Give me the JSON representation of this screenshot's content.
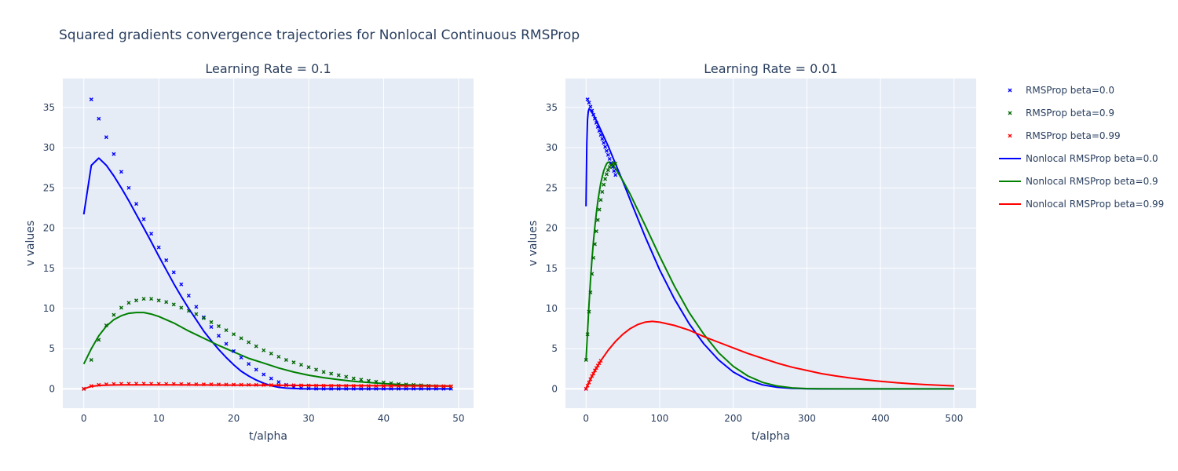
{
  "figure": {
    "title": "Squared gradients convergence trajectories for Nonlocal Continuous RMSProp",
    "plot_bg": "#e5ecf6",
    "grid_color": "#ffffff"
  },
  "legend": {
    "position": "right",
    "items": [
      {
        "label": "RMSProp beta=0.0",
        "type": "marker",
        "color": "#0000ff"
      },
      {
        "label": "RMSProp beta=0.9",
        "type": "marker",
        "color": "#006400"
      },
      {
        "label": "RMSProp beta=0.99",
        "type": "marker",
        "color": "#ff0000"
      },
      {
        "label": "Nonlocal RMSProp beta=0.0",
        "type": "line",
        "color": "#0000ff"
      },
      {
        "label": "Nonlocal RMSProp beta=0.9",
        "type": "line",
        "color": "#008000"
      },
      {
        "label": "Nonlocal RMSProp beta=0.99",
        "type": "line",
        "color": "#ff0000"
      }
    ]
  },
  "chart_data": [
    {
      "type": "line",
      "title": "Learning Rate = 0.1",
      "xlabel": "t/alpha",
      "ylabel": "v values",
      "xlim": [
        -2.8,
        52
      ],
      "ylim": [
        -2.4,
        38.6
      ],
      "xticks": [
        0,
        10,
        20,
        30,
        40,
        50
      ],
      "yticks": [
        0,
        5,
        10,
        15,
        20,
        25,
        30,
        35
      ],
      "grid": true,
      "series": [
        {
          "name": "RMSProp beta=0.0",
          "mode": "markers",
          "color": "#0000ff",
          "x": [
            0,
            1,
            2,
            3,
            4,
            5,
            6,
            7,
            8,
            9,
            10,
            11,
            12,
            13,
            14,
            15,
            16,
            17,
            18,
            19,
            20,
            21,
            22,
            23,
            24,
            25,
            26,
            27,
            28,
            29,
            30,
            31,
            32,
            33,
            34,
            35,
            36,
            37,
            38,
            39,
            40,
            41,
            42,
            43,
            44,
            45,
            46,
            47,
            48,
            49
          ],
          "y": [
            0,
            36.0,
            33.6,
            31.3,
            29.2,
            27.0,
            25.0,
            23.0,
            21.1,
            19.3,
            17.6,
            16.0,
            14.5,
            13.0,
            11.6,
            10.2,
            8.9,
            7.7,
            6.6,
            5.6,
            4.7,
            3.9,
            3.1,
            2.4,
            1.8,
            1.3,
            0.85,
            0.5,
            0.25,
            0.1,
            0.05,
            0.02,
            0.01,
            0.01,
            0.01,
            0.01,
            0.01,
            0.01,
            0.01,
            0.01,
            0.01,
            0.01,
            0.01,
            0.01,
            0.01,
            0.01,
            0.01,
            0.01,
            0.01,
            0.01
          ]
        },
        {
          "name": "RMSProp beta=0.9",
          "mode": "markers",
          "color": "#006400",
          "x": [
            0,
            1,
            2,
            3,
            4,
            5,
            6,
            7,
            8,
            9,
            10,
            11,
            12,
            13,
            14,
            15,
            16,
            17,
            18,
            19,
            20,
            21,
            22,
            23,
            24,
            25,
            26,
            27,
            28,
            29,
            30,
            31,
            32,
            33,
            34,
            35,
            36,
            37,
            38,
            39,
            40,
            41,
            42,
            43,
            44,
            45,
            46,
            47,
            48,
            49
          ],
          "y": [
            0,
            3.6,
            6.1,
            7.9,
            9.2,
            10.1,
            10.7,
            11.0,
            11.2,
            11.2,
            11.0,
            10.8,
            10.5,
            10.1,
            9.7,
            9.3,
            8.8,
            8.3,
            7.8,
            7.3,
            6.8,
            6.3,
            5.8,
            5.3,
            4.8,
            4.4,
            4.0,
            3.6,
            3.3,
            3.0,
            2.7,
            2.4,
            2.1,
            1.9,
            1.7,
            1.5,
            1.3,
            1.15,
            1.0,
            0.9,
            0.8,
            0.7,
            0.6,
            0.55,
            0.5,
            0.45,
            0.4,
            0.36,
            0.33,
            0.3
          ]
        },
        {
          "name": "RMSProp beta=0.99",
          "mode": "markers",
          "color": "#ff0000",
          "x": [
            0,
            1,
            2,
            3,
            4,
            5,
            6,
            7,
            8,
            9,
            10,
            11,
            12,
            13,
            14,
            15,
            16,
            17,
            18,
            19,
            20,
            21,
            22,
            23,
            24,
            25,
            26,
            27,
            28,
            29,
            30,
            31,
            32,
            33,
            34,
            35,
            36,
            37,
            38,
            39,
            40,
            41,
            42,
            43,
            44,
            45,
            46,
            47,
            48,
            49
          ],
          "y": [
            0,
            0.36,
            0.5,
            0.58,
            0.62,
            0.64,
            0.65,
            0.65,
            0.65,
            0.64,
            0.63,
            0.62,
            0.61,
            0.6,
            0.59,
            0.58,
            0.57,
            0.56,
            0.55,
            0.54,
            0.53,
            0.52,
            0.51,
            0.5,
            0.49,
            0.48,
            0.47,
            0.46,
            0.45,
            0.44,
            0.43,
            0.42,
            0.41,
            0.4,
            0.4,
            0.39,
            0.38,
            0.38,
            0.37,
            0.37,
            0.36,
            0.36,
            0.35,
            0.35,
            0.34,
            0.34,
            0.34,
            0.33,
            0.33,
            0.33
          ]
        },
        {
          "name": "Nonlocal RMSProp beta=0.0",
          "mode": "lines",
          "color": "#0000ff",
          "x": [
            0,
            1,
            2,
            3,
            4,
            5,
            6,
            7,
            8,
            9,
            10,
            11,
            12,
            13,
            14,
            15,
            16,
            17,
            18,
            19,
            20,
            21,
            22,
            23,
            24,
            25,
            26,
            27,
            28,
            29,
            30,
            35,
            40,
            45,
            49
          ],
          "y": [
            21.7,
            27.8,
            28.7,
            27.8,
            26.5,
            25.0,
            23.4,
            21.7,
            20.0,
            18.3,
            16.5,
            14.8,
            13.1,
            11.5,
            10.0,
            8.6,
            7.2,
            6.0,
            4.9,
            3.9,
            3.0,
            2.2,
            1.6,
            1.1,
            0.7,
            0.4,
            0.2,
            0.1,
            0.05,
            0.02,
            0.0,
            0.0,
            0.0,
            0.0,
            0.0
          ]
        },
        {
          "name": "Nonlocal RMSProp beta=0.9",
          "mode": "lines",
          "color": "#008000",
          "x": [
            0,
            1,
            2,
            3,
            4,
            5,
            6,
            7,
            8,
            9,
            10,
            12,
            14,
            16,
            18,
            20,
            22,
            24,
            26,
            28,
            30,
            32,
            34,
            36,
            38,
            40,
            42,
            44,
            46,
            48,
            49
          ],
          "y": [
            3.1,
            5.0,
            6.6,
            7.8,
            8.6,
            9.1,
            9.4,
            9.5,
            9.5,
            9.3,
            9.0,
            8.2,
            7.2,
            6.3,
            5.4,
            4.6,
            3.8,
            3.2,
            2.6,
            2.1,
            1.7,
            1.4,
            1.15,
            0.95,
            0.8,
            0.67,
            0.56,
            0.48,
            0.42,
            0.36,
            0.34
          ]
        },
        {
          "name": "Nonlocal RMSProp beta=0.99",
          "mode": "lines",
          "color": "#ff0000",
          "x": [
            0,
            1,
            2,
            3,
            5,
            8,
            12,
            16,
            20,
            25,
            30,
            35,
            40,
            45,
            49
          ],
          "y": [
            0.0,
            0.32,
            0.42,
            0.47,
            0.5,
            0.51,
            0.5,
            0.49,
            0.47,
            0.45,
            0.43,
            0.41,
            0.39,
            0.37,
            0.36
          ]
        }
      ]
    },
    {
      "type": "line",
      "title": "Learning Rate = 0.01",
      "xlabel": "t/alpha",
      "ylabel": "v values",
      "xlim": [
        -28,
        530
      ],
      "ylim": [
        -2.4,
        38.6
      ],
      "xticks": [
        0,
        100,
        200,
        300,
        400,
        500
      ],
      "yticks": [
        0,
        5,
        10,
        15,
        20,
        25,
        30,
        35
      ],
      "grid": true,
      "series": [
        {
          "name": "RMSProp beta=0.0",
          "mode": "markers",
          "color": "#0000ff",
          "x": [
            0,
            2,
            4,
            6,
            8,
            10,
            12,
            14,
            16,
            18,
            20,
            22,
            24,
            26,
            28,
            30,
            32,
            34,
            36,
            38,
            40
          ],
          "y": [
            0,
            36.0,
            35.6,
            35.1,
            34.6,
            34.1,
            33.6,
            33.1,
            32.6,
            32.1,
            31.6,
            31.1,
            30.6,
            30.1,
            29.6,
            29.1,
            28.6,
            28.1,
            27.6,
            27.1,
            26.6
          ]
        },
        {
          "name": "RMSProp beta=0.9",
          "mode": "markers",
          "color": "#006400",
          "x": [
            0,
            2,
            4,
            6,
            8,
            10,
            12,
            14,
            16,
            18,
            20,
            22,
            24,
            26,
            28,
            30,
            32,
            34,
            36,
            38,
            40
          ],
          "y": [
            3.6,
            6.8,
            9.6,
            12.0,
            14.3,
            16.3,
            18.0,
            19.6,
            21.0,
            22.3,
            23.5,
            24.5,
            25.4,
            26.1,
            26.7,
            27.2,
            27.6,
            27.8,
            28.0,
            28.1,
            28.0
          ]
        },
        {
          "name": "RMSProp beta=0.99",
          "mode": "markers",
          "color": "#ff0000",
          "x": [
            0,
            2,
            4,
            6,
            8,
            10,
            12,
            14,
            16,
            18,
            20
          ],
          "y": [
            0,
            0.4,
            0.8,
            1.2,
            1.6,
            1.9,
            2.3,
            2.6,
            2.9,
            3.2,
            3.5
          ]
        },
        {
          "name": "Nonlocal RMSProp beta=0.0",
          "mode": "lines",
          "color": "#0000ff",
          "x": [
            0,
            1,
            2,
            3,
            4,
            6,
            8,
            10,
            15,
            20,
            30,
            40,
            50,
            60,
            80,
            100,
            120,
            140,
            160,
            180,
            200,
            220,
            240,
            260,
            280,
            300,
            320,
            350,
            400,
            450,
            500
          ],
          "y": [
            22.7,
            30.5,
            33.5,
            34.5,
            34.8,
            34.7,
            34.4,
            34.1,
            33.2,
            32.2,
            30.2,
            28.0,
            25.8,
            23.5,
            19.0,
            14.8,
            11.2,
            8.1,
            5.6,
            3.6,
            2.1,
            1.1,
            0.5,
            0.2,
            0.07,
            0.02,
            0.0,
            0.0,
            0.0,
            0.0,
            0.0
          ]
        },
        {
          "name": "Nonlocal RMSProp beta=0.9",
          "mode": "lines",
          "color": "#008000",
          "x": [
            0,
            2,
            4,
            6,
            8,
            10,
            12,
            14,
            16,
            18,
            20,
            22,
            24,
            26,
            28,
            30,
            35,
            40,
            50,
            60,
            80,
            100,
            120,
            140,
            160,
            180,
            200,
            220,
            240,
            260,
            280,
            300,
            320,
            350,
            400,
            450,
            500
          ],
          "y": [
            3.5,
            7.0,
            10.5,
            13.5,
            16.0,
            18.3,
            20.2,
            21.9,
            23.3,
            24.5,
            25.6,
            26.4,
            27.1,
            27.6,
            28.0,
            28.2,
            28.0,
            27.4,
            25.9,
            24.2,
            20.4,
            16.5,
            12.8,
            9.5,
            6.8,
            4.5,
            2.8,
            1.6,
            0.8,
            0.35,
            0.13,
            0.04,
            0.01,
            0.0,
            0.0,
            0.0,
            0.0
          ]
        },
        {
          "name": "Nonlocal RMSProp beta=0.99",
          "mode": "lines",
          "color": "#ff0000",
          "x": [
            0,
            5,
            10,
            15,
            20,
            30,
            40,
            50,
            60,
            70,
            80,
            90,
            100,
            120,
            140,
            160,
            180,
            200,
            220,
            240,
            260,
            280,
            300,
            320,
            340,
            360,
            380,
            400,
            420,
            440,
            460,
            480,
            500
          ],
          "y": [
            0.0,
            1.0,
            1.9,
            2.7,
            3.5,
            4.8,
            5.9,
            6.8,
            7.5,
            8.0,
            8.3,
            8.4,
            8.3,
            7.9,
            7.3,
            6.5,
            5.8,
            5.1,
            4.4,
            3.8,
            3.2,
            2.7,
            2.3,
            1.9,
            1.6,
            1.35,
            1.12,
            0.94,
            0.78,
            0.65,
            0.54,
            0.45,
            0.37
          ]
        }
      ]
    }
  ]
}
